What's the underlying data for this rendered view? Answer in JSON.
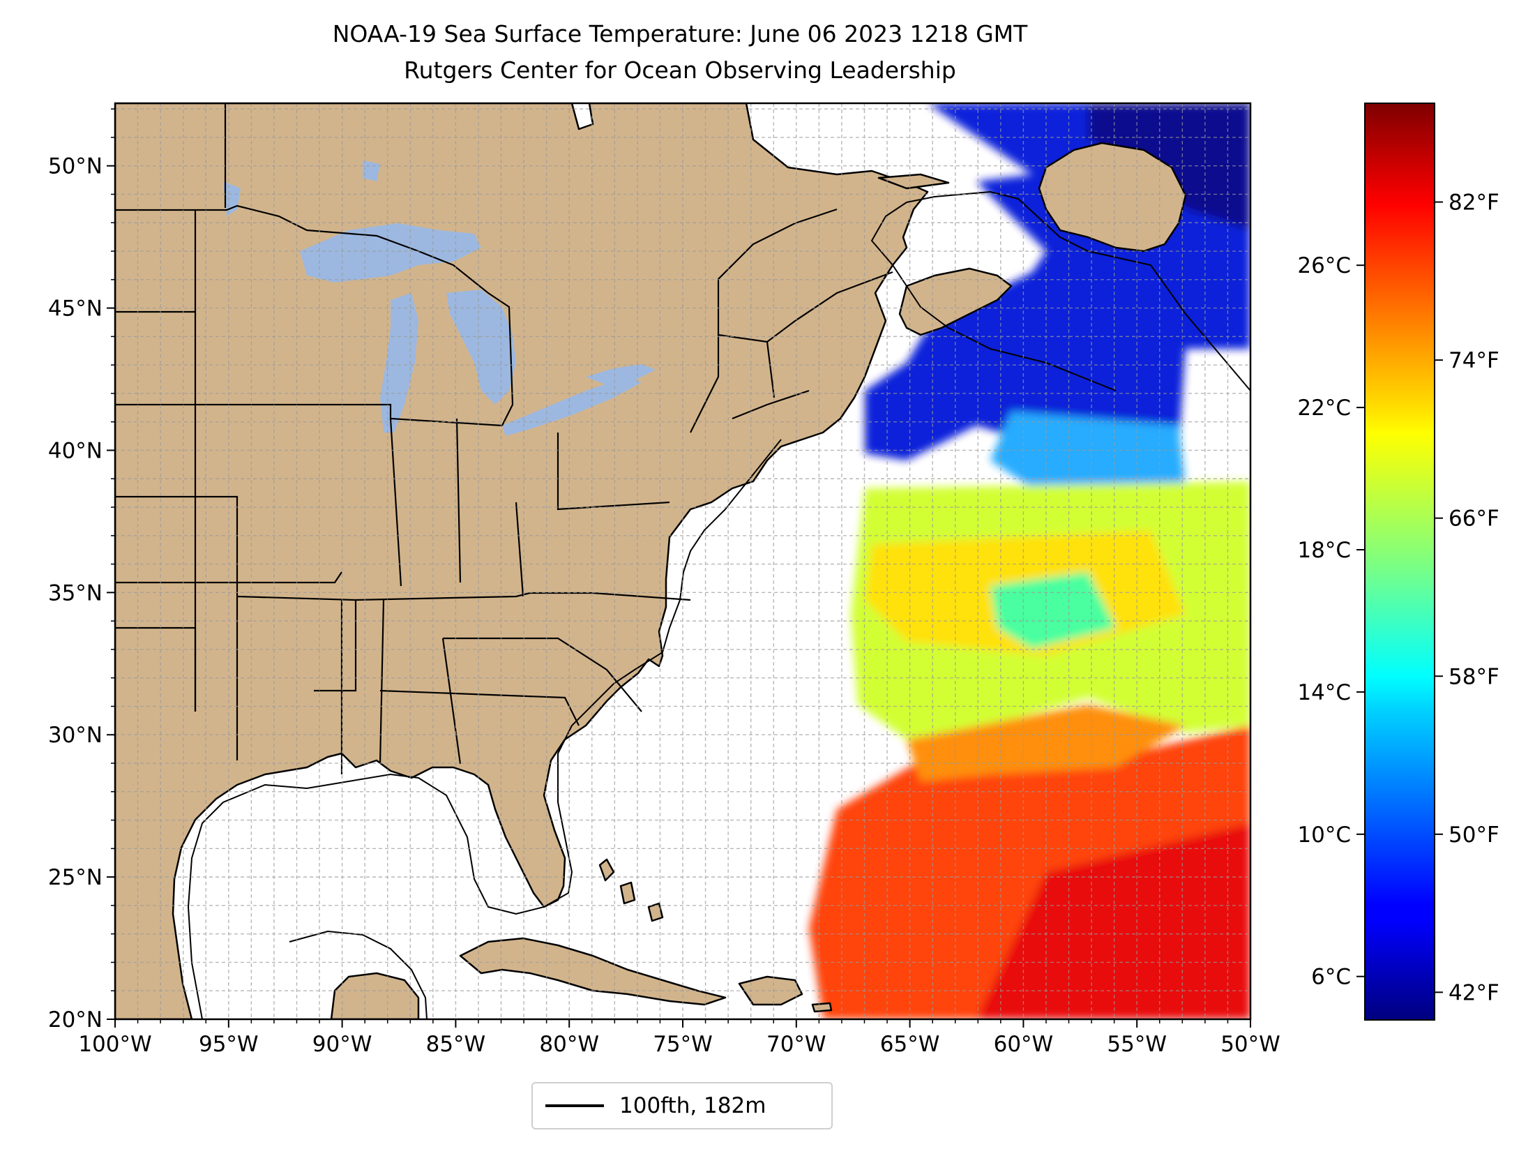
{
  "title": {
    "line1": "NOAA-19 Sea Surface Temperature: June 06 2023 1218 GMT",
    "line2": "Rutgers Center for Ocean Observing Leadership"
  },
  "map": {
    "lon_range": [
      -100,
      -50
    ],
    "lat_range": [
      20,
      52.2
    ],
    "lon_ticks": [
      {
        "value": -100,
        "label": "100°W"
      },
      {
        "value": -95,
        "label": "95°W"
      },
      {
        "value": -90,
        "label": "90°W"
      },
      {
        "value": -85,
        "label": "85°W"
      },
      {
        "value": -80,
        "label": "80°W"
      },
      {
        "value": -75,
        "label": "75°W"
      },
      {
        "value": -70,
        "label": "70°W"
      },
      {
        "value": -65,
        "label": "65°W"
      },
      {
        "value": -60,
        "label": "60°W"
      },
      {
        "value": -55,
        "label": "55°W"
      },
      {
        "value": -50,
        "label": "50°W"
      }
    ],
    "lat_ticks": [
      {
        "value": 20,
        "label": "20°N"
      },
      {
        "value": 25,
        "label": "25°N"
      },
      {
        "value": 30,
        "label": "30°N"
      },
      {
        "value": 35,
        "label": "35°N"
      },
      {
        "value": 40,
        "label": "40°N"
      },
      {
        "value": 45,
        "label": "45°N"
      },
      {
        "value": 50,
        "label": "50°N"
      }
    ],
    "land_color": "#d2b48c",
    "lake_color": "#9cb8e0",
    "grid": "dashed gray, 1° spacing"
  },
  "colorbar": {
    "colormap": "jet",
    "celsius_ticks": [
      {
        "value": 6,
        "label": "6°C"
      },
      {
        "value": 10,
        "label": "10°C"
      },
      {
        "value": 14,
        "label": "14°C"
      },
      {
        "value": 18,
        "label": "18°C"
      },
      {
        "value": 22,
        "label": "22°C"
      },
      {
        "value": 26,
        "label": "26°C"
      }
    ],
    "fahrenheit_ticks": [
      {
        "value": 42,
        "label": "42°F"
      },
      {
        "value": 50,
        "label": "50°F"
      },
      {
        "value": 58,
        "label": "58°F"
      },
      {
        "value": 66,
        "label": "66°F"
      },
      {
        "value": 74,
        "label": "74°F"
      },
      {
        "value": 82,
        "label": "82°F"
      }
    ],
    "range_f": [
      40.6,
      87
    ]
  },
  "legend": {
    "label": "100fth, 182m"
  }
}
